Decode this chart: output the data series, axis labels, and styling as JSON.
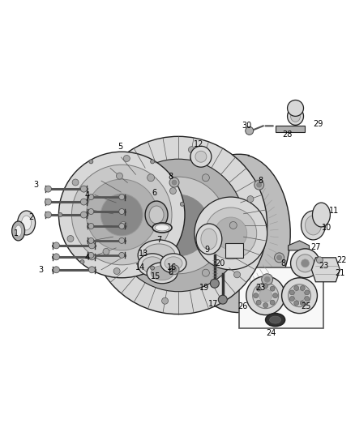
{
  "bg_color": "#ffffff",
  "fig_width": 4.38,
  "fig_height": 5.33,
  "label_fontsize": 7.0,
  "line_color": "#222222",
  "text_color": "#000000",
  "gray_light": "#d8d8d8",
  "gray_mid": "#b0b0b0",
  "gray_dark": "#888888",
  "gray_body": "#c8c8c8",
  "gray_housing": "#bcbcbc",
  "white_ish": "#efefef"
}
